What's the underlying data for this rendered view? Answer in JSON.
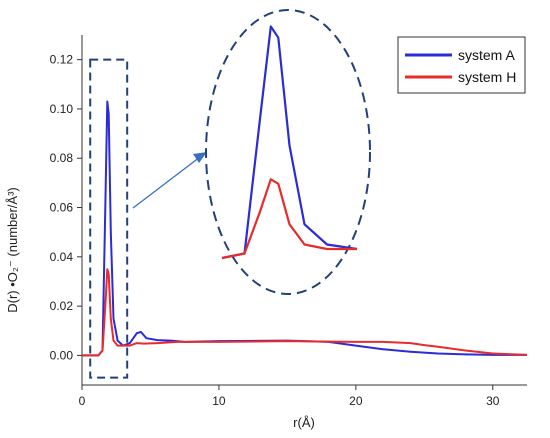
{
  "chart_data": {
    "type": "line",
    "xlabel": "r(Å)",
    "ylabel": "D(r) •O₂⁻ (number/Å³)",
    "xlim": [
      0,
      32.5
    ],
    "ylim": [
      -0.012,
      0.13
    ],
    "xticks": [
      0,
      10,
      20,
      30
    ],
    "yticks": [
      0.0,
      0.02,
      0.04,
      0.06,
      0.08,
      0.1,
      0.12
    ],
    "xtick_labels": [
      "0",
      "10",
      "20",
      "30"
    ],
    "ytick_labels": [
      "0.00",
      "0.02",
      "0.04",
      "0.06",
      "0.08",
      "0.10",
      "0.12"
    ],
    "legend": {
      "position": "top-right",
      "boxed": true
    },
    "grid": false,
    "highlight_box": {
      "x": [
        0.6,
        3.3
      ],
      "y": [
        -0.009,
        0.12
      ]
    },
    "inset": "zoomed view of the first peak (r ≈ 1–3 Å)",
    "series": [
      {
        "name": "system A",
        "color": "#2b2bd8",
        "x": [
          0,
          1.2,
          1.5,
          1.7,
          1.85,
          1.95,
          2.1,
          2.3,
          2.6,
          3.0,
          3.5,
          4.0,
          4.3,
          4.7,
          5.5,
          6.5,
          7.5,
          10,
          15,
          18,
          20,
          22,
          24,
          26,
          28,
          30,
          32.5
        ],
        "y": [
          0,
          0,
          0.002,
          0.06,
          0.103,
          0.098,
          0.05,
          0.015,
          0.006,
          0.004,
          0.005,
          0.009,
          0.0095,
          0.007,
          0.0062,
          0.006,
          0.0055,
          0.0058,
          0.006,
          0.0055,
          0.004,
          0.0025,
          0.0015,
          0.0008,
          0.0004,
          0.0002,
          0.0002
        ]
      },
      {
        "name": "system H",
        "color": "#e82b2b",
        "x": [
          0,
          1.2,
          1.5,
          1.7,
          1.85,
          1.95,
          2.1,
          2.3,
          2.6,
          3.0,
          3.5,
          4.0,
          4.5,
          5.5,
          7,
          10,
          15,
          20,
          22,
          24,
          25,
          26,
          28,
          30,
          32.5
        ],
        "y": [
          0,
          0,
          0.002,
          0.02,
          0.035,
          0.033,
          0.015,
          0.006,
          0.004,
          0.004,
          0.004,
          0.005,
          0.0048,
          0.005,
          0.0055,
          0.0055,
          0.0058,
          0.0055,
          0.0055,
          0.005,
          0.0042,
          0.0035,
          0.002,
          0.0008,
          0.0002
        ]
      }
    ]
  }
}
